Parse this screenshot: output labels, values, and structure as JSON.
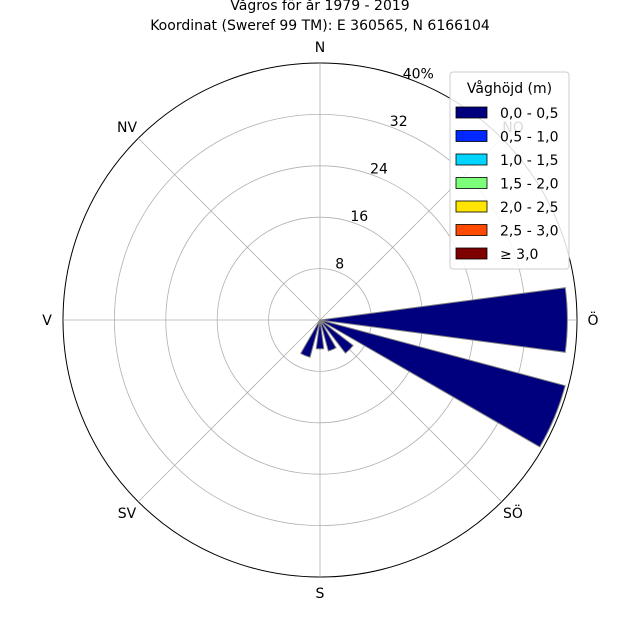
{
  "chart_data": {
    "type": "windrose",
    "title": "Vågros för år 1979 - 2019",
    "subtitle": "Koordinat (Sweref 99 TM): E 360565, N 6166104",
    "directions": [
      "N",
      "NO",
      "Ö",
      "SÖ",
      "S",
      "SV",
      "V",
      "NV"
    ],
    "ring_labels": [
      "8",
      "16",
      "24",
      "32",
      "40%"
    ],
    "r_max": 40,
    "ring_values": [
      8,
      16,
      24,
      32,
      40
    ],
    "legend": {
      "title": "Våghöjd (m)",
      "placement": "top-right",
      "entries": [
        {
          "label": "0,0 - 0,5",
          "color": "#00007f"
        },
        {
          "label": "0,5 - 1,0",
          "color": "#0028ff"
        },
        {
          "label": "1,0 - 1,5",
          "color": "#00d4ff"
        },
        {
          "label": "1,5 - 2,0",
          "color": "#7cff79"
        },
        {
          "label": "2,0 - 2,5",
          "color": "#ffe500"
        },
        {
          "label": "2,5 - 3,0",
          "color": "#ff4a00"
        },
        {
          "label": "≥ 3,0",
          "color": "#7f0000"
        }
      ]
    },
    "bars": [
      {
        "direction_deg": 90,
        "width_deg": 15,
        "value": 38.5,
        "bin": "0,0 - 0,5"
      },
      {
        "direction_deg": 112.5,
        "width_deg": 15,
        "value": 39.5,
        "bin": "0,0 - 0,5"
      },
      {
        "direction_deg": 135,
        "width_deg": 15,
        "value": 6.5,
        "bin": "0,0 - 0,5"
      },
      {
        "direction_deg": 157.5,
        "width_deg": 15,
        "value": 5.0,
        "bin": "0,0 - 0,5"
      },
      {
        "direction_deg": 180,
        "width_deg": 15,
        "value": 4.5,
        "bin": "0,0 - 0,5"
      },
      {
        "direction_deg": 202.5,
        "width_deg": 15,
        "value": 6.0,
        "bin": "0,0 - 0,5"
      }
    ]
  }
}
